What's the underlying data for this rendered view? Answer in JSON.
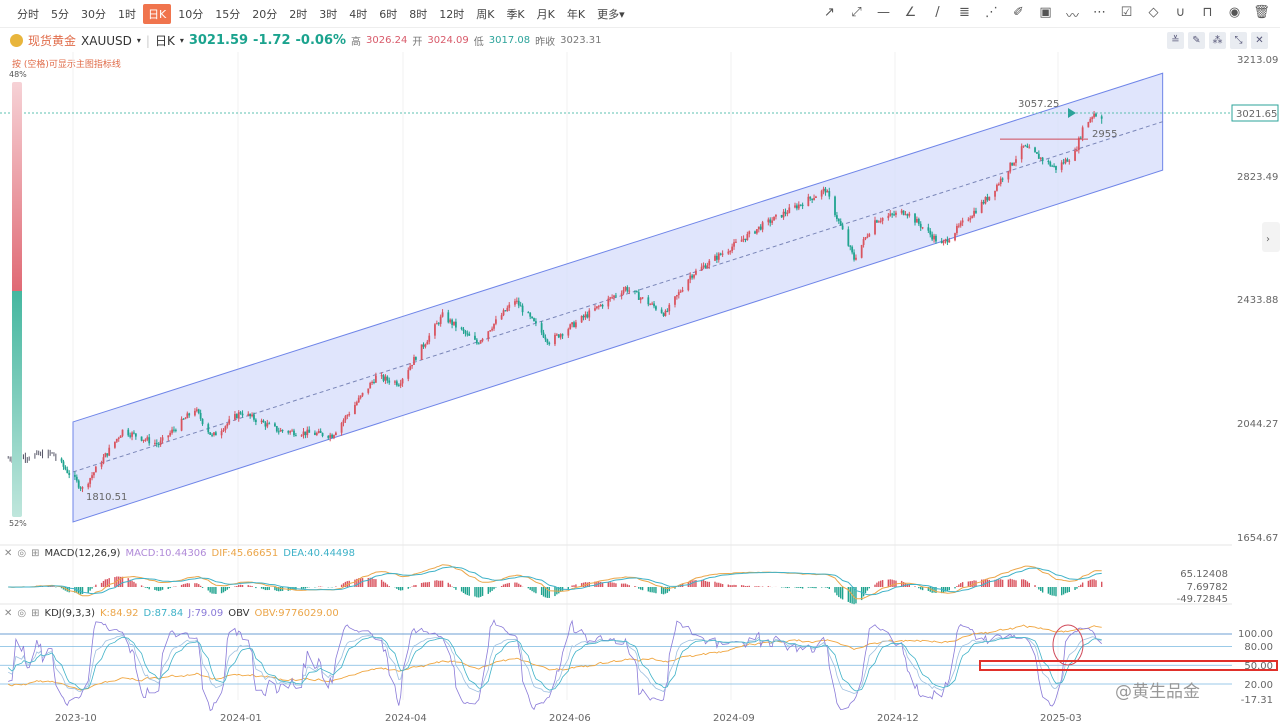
{
  "toolbar": {
    "timeframes": [
      "分时",
      "5分",
      "30分",
      "1时",
      "日K",
      "10分",
      "15分",
      "20分",
      "2时",
      "3时",
      "4时",
      "6时",
      "8时",
      "12时",
      "周K",
      "季K",
      "月K",
      "年K",
      "更多▾"
    ],
    "active": "日K",
    "drawing_tools": [
      "ray-arrow-icon",
      "extended-line-icon",
      "horizontal-line-icon",
      "parallel-channel-icon",
      "pen-icon",
      "fibonacci-icon",
      "fan-icon",
      "highlighter-icon",
      "image-icon",
      "trend-icon",
      "more-icon",
      "edit-icon",
      "eraser-icon",
      "magnet-icon",
      "lock-icon",
      "eye-icon",
      "trash-icon"
    ]
  },
  "symbol": {
    "name": "现货黄金",
    "code": "XAUUSD",
    "period": "日K",
    "price": "3021.59",
    "change": "-1.72",
    "change_pct": "-0.06%",
    "high_label": "高",
    "high": "3026.24",
    "open_label": "开",
    "open": "3024.09",
    "low_label": "低",
    "low": "3017.08",
    "prev_label": "昨收",
    "prev": "3023.31"
  },
  "hint": "按 (空格)可显示主图指标线",
  "ratio": {
    "top": "48%",
    "bottom": "52%",
    "top_value": 48
  },
  "price_axis": {
    "ticks": [
      "3213.09",
      "2823.49",
      "2433.88",
      "2044.27",
      "1654.67"
    ],
    "current": "3021.65"
  },
  "annotations": {
    "high": "3057.25",
    "low": "1810.51",
    "level": "2955"
  },
  "macd": {
    "title": "MACD(12,26,9)",
    "macd": "MACD:10.44306",
    "dif": "DIF:45.66651",
    "dea": "DEA:40.44498",
    "axis": [
      "65.12408",
      "7.69782",
      "-49.72845"
    ]
  },
  "kdj": {
    "title": "KDJ(9,3,3)",
    "k": "K:84.92",
    "d": "D:87.84",
    "j": "J:79.09",
    "obv_title": "OBV",
    "obv": "OBV:9776029.00",
    "axis": [
      "100.00",
      "80.00",
      "50.00",
      "20.00",
      "-17.31"
    ]
  },
  "dates": [
    "2023-10",
    "2024-01",
    "2024-04",
    "2024-06",
    "2024-09",
    "2024-12",
    "2025-03"
  ],
  "watermark": "@黄生品金",
  "colors": {
    "up": "#d9545f",
    "down": "#1fa38f",
    "channel": "#d6dcfb",
    "accent": "#f0744d"
  },
  "chart_data": {
    "type": "candlestick",
    "ylim": [
      1654.67,
      3213.09
    ],
    "key_closes": [
      [
        "2023-08-28",
        1915
      ],
      [
        "2023-09-20",
        1930
      ],
      [
        "2023-10-06",
        1815
      ],
      [
        "2023-10-27",
        2005
      ],
      [
        "2023-11-15",
        1960
      ],
      [
        "2023-12-04",
        2075
      ],
      [
        "2023-12-13",
        1985
      ],
      [
        "2023-12-28",
        2065
      ],
      [
        "2024-01-17",
        2005
      ],
      [
        "2024-02-14",
        1990
      ],
      [
        "2024-03-08",
        2180
      ],
      [
        "2024-03-20",
        2160
      ],
      [
        "2024-04-12",
        2380
      ],
      [
        "2024-04-30",
        2290
      ],
      [
        "2024-05-20",
        2430
      ],
      [
        "2024-06-07",
        2295
      ],
      [
        "2024-07-17",
        2470
      ],
      [
        "2024-08-07",
        2385
      ],
      [
        "2024-08-20",
        2510
      ],
      [
        "2024-09-26",
        2670
      ],
      [
        "2024-10-30",
        2790
      ],
      [
        "2024-11-14",
        2565
      ],
      [
        "2024-11-25",
        2690
      ],
      [
        "2024-12-11",
        2720
      ],
      [
        "2024-12-30",
        2610
      ],
      [
        "2025-01-24",
        2770
      ],
      [
        "2025-02-11",
        2930
      ],
      [
        "2025-02-28",
        2860
      ],
      [
        "2025-03-10",
        2910
      ],
      [
        "2025-03-14",
        2990
      ],
      [
        "2025-03-20",
        3040
      ],
      [
        "2025-03-24",
        3021.59
      ]
    ],
    "channel": {
      "upper": [
        [
          "2023-10-01",
          2033
        ],
        [
          "2025-04-25",
          3170
        ]
      ],
      "lower": [
        [
          "2023-10-01",
          1707
        ],
        [
          "2025-04-25",
          2854
        ]
      ]
    }
  }
}
